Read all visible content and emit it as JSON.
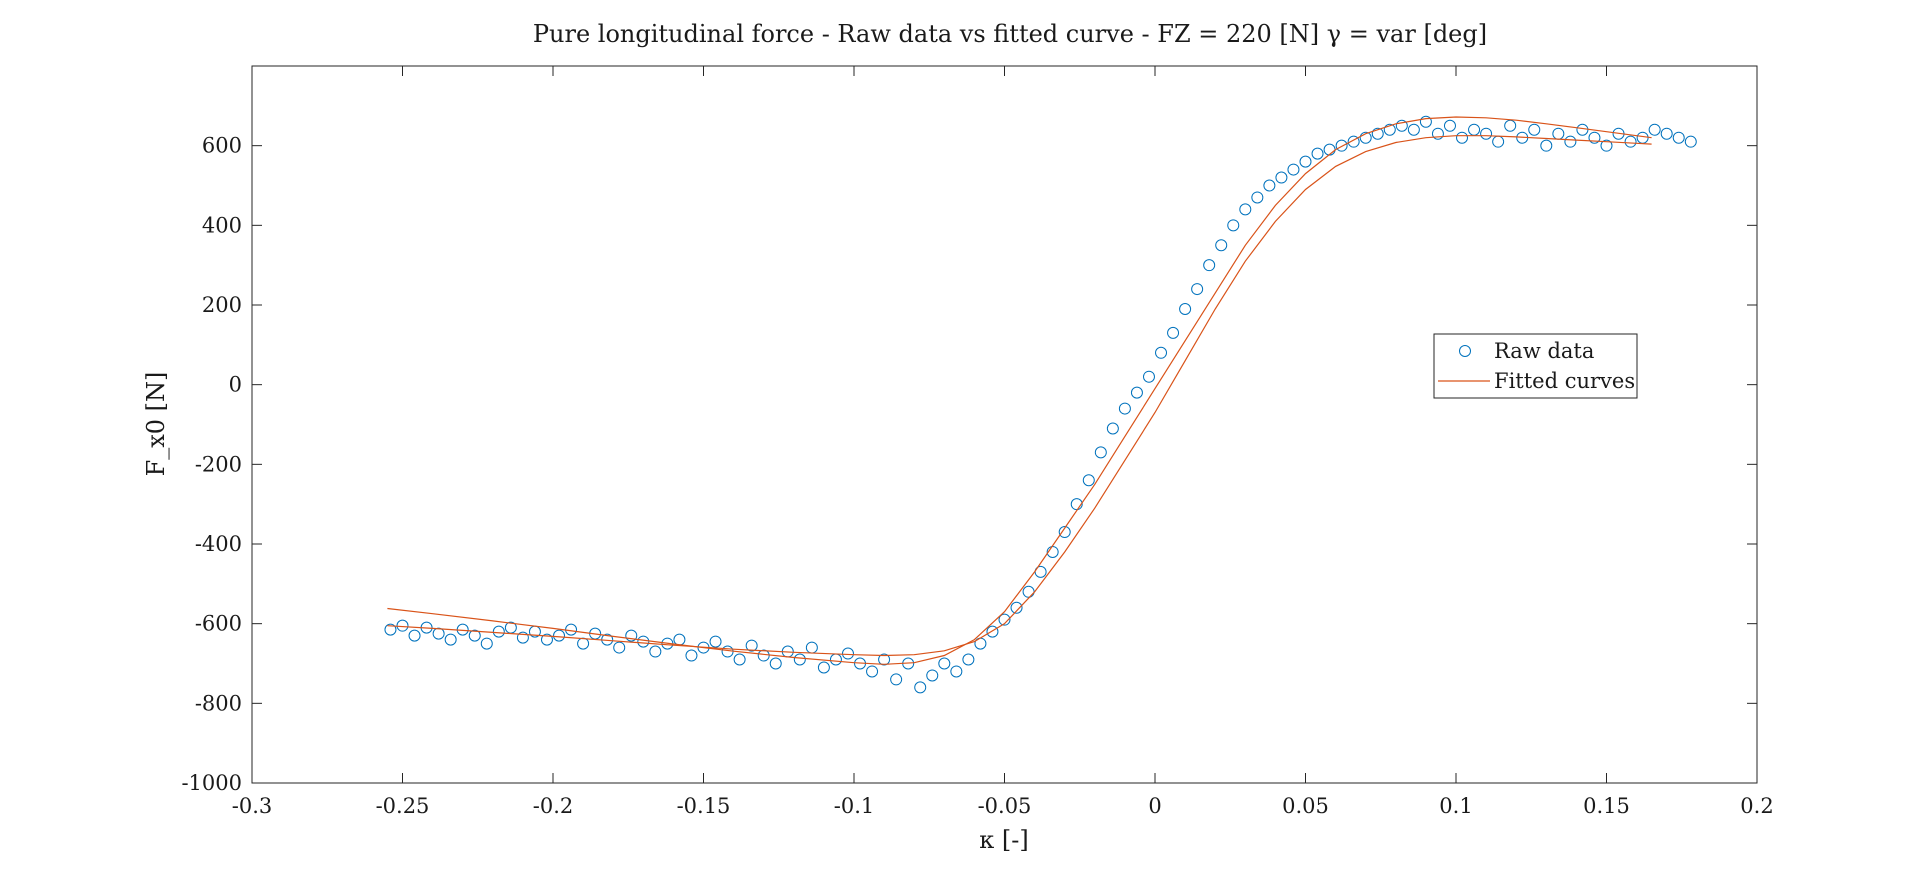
{
  "chart_data": {
    "type": "scatter",
    "title": "Pure longitudinal force - Raw data vs fitted curve - FZ = 220 [N] γ = var [deg]",
    "xlabel": "κ [-]",
    "ylabel": "F_x0 [N]",
    "xlim": [
      -0.3,
      0.2
    ],
    "ylim": [
      -1000,
      800
    ],
    "xticks": [
      -0.3,
      -0.25,
      -0.2,
      -0.15,
      -0.1,
      -0.05,
      0,
      0.05,
      0.1,
      0.15,
      0.2
    ],
    "xtick_labels": [
      "-0.3",
      "-0.25",
      "-0.2",
      "-0.15",
      "-0.1",
      "-0.05",
      "0",
      "0.05",
      "0.1",
      "0.15",
      "0.2"
    ],
    "yticks": [
      -1000,
      -800,
      -600,
      -400,
      -200,
      0,
      200,
      400,
      600
    ],
    "ytick_labels": [
      "-1000",
      "-800",
      "-600",
      "-400",
      "-200",
      "0",
      "200",
      "400",
      "600"
    ],
    "grid": false,
    "legend_position": "right-center",
    "series": [
      {
        "name": "Raw data",
        "marker": "circle",
        "color": "#0072BD",
        "x": [
          -0.254,
          -0.25,
          -0.246,
          -0.242,
          -0.238,
          -0.234,
          -0.23,
          -0.226,
          -0.222,
          -0.218,
          -0.214,
          -0.21,
          -0.206,
          -0.202,
          -0.198,
          -0.194,
          -0.19,
          -0.186,
          -0.182,
          -0.178,
          -0.174,
          -0.17,
          -0.166,
          -0.162,
          -0.158,
          -0.154,
          -0.15,
          -0.146,
          -0.142,
          -0.138,
          -0.134,
          -0.13,
          -0.126,
          -0.122,
          -0.118,
          -0.114,
          -0.11,
          -0.106,
          -0.102,
          -0.098,
          -0.094,
          -0.09,
          -0.086,
          -0.082,
          -0.078,
          -0.074,
          -0.07,
          -0.066,
          -0.062,
          -0.058,
          -0.054,
          -0.05,
          -0.046,
          -0.042,
          -0.038,
          -0.034,
          -0.03,
          -0.026,
          -0.022,
          -0.018,
          -0.014,
          -0.01,
          -0.006,
          -0.002,
          0.002,
          0.006,
          0.01,
          0.014,
          0.018,
          0.022,
          0.026,
          0.03,
          0.034,
          0.038,
          0.042,
          0.046,
          0.05,
          0.054,
          0.058,
          0.062,
          0.066,
          0.07,
          0.074,
          0.078,
          0.082,
          0.086,
          0.09,
          0.094,
          0.098,
          0.102,
          0.106,
          0.11,
          0.114,
          0.118,
          0.122,
          0.126,
          0.13,
          0.134,
          0.138,
          0.142,
          0.146,
          0.15,
          0.154,
          0.158,
          0.162,
          0.166,
          0.17,
          0.174,
          0.178
        ],
        "y": [
          -615,
          -605,
          -630,
          -610,
          -625,
          -640,
          -615,
          -630,
          -650,
          -620,
          -610,
          -635,
          -620,
          -640,
          -630,
          -615,
          -650,
          -625,
          -640,
          -660,
          -630,
          -645,
          -670,
          -650,
          -640,
          -680,
          -660,
          -645,
          -670,
          -690,
          -655,
          -680,
          -700,
          -670,
          -690,
          -660,
          -710,
          -690,
          -675,
          -700,
          -720,
          -690,
          -740,
          -700,
          -760,
          -730,
          -700,
          -720,
          -690,
          -650,
          -620,
          -590,
          -560,
          -520,
          -470,
          -420,
          -370,
          -300,
          -240,
          -170,
          -110,
          -60,
          -20,
          20,
          80,
          130,
          190,
          240,
          300,
          350,
          400,
          440,
          470,
          500,
          520,
          540,
          560,
          580,
          590,
          600,
          610,
          620,
          630,
          640,
          650,
          640,
          660,
          630,
          650,
          620,
          640,
          630,
          610,
          650,
          620,
          640,
          600,
          630,
          610,
          640,
          620,
          600,
          630,
          610,
          620,
          640,
          630,
          620,
          610
        ]
      },
      {
        "name": "Fitted curves",
        "color": "#D95319",
        "x": [
          -0.255,
          -0.24,
          -0.22,
          -0.2,
          -0.18,
          -0.16,
          -0.14,
          -0.12,
          -0.1,
          -0.09,
          -0.08,
          -0.07,
          -0.06,
          -0.05,
          -0.04,
          -0.03,
          -0.02,
          -0.01,
          0,
          0.01,
          0.02,
          0.03,
          0.04,
          0.05,
          0.06,
          0.07,
          0.08,
          0.09,
          0.1,
          0.11,
          0.12,
          0.13,
          0.14,
          0.15,
          0.16,
          0.165
        ],
        "y": [
          -562,
          -575,
          -593,
          -612,
          -632,
          -651,
          -669,
          -685,
          -698,
          -702,
          -698,
          -680,
          -640,
          -570,
          -470,
          -360,
          -250,
          -130,
          -10,
          110,
          230,
          350,
          450,
          530,
          590,
          630,
          655,
          668,
          672,
          670,
          664,
          655,
          645,
          635,
          625,
          620
        ]
      },
      {
        "name": "",
        "color": "#D95319",
        "x": [
          -0.255,
          -0.24,
          -0.22,
          -0.2,
          -0.18,
          -0.16,
          -0.14,
          -0.12,
          -0.1,
          -0.09,
          -0.08,
          -0.07,
          -0.06,
          -0.05,
          -0.04,
          -0.03,
          -0.02,
          -0.01,
          0,
          0.01,
          0.02,
          0.03,
          0.04,
          0.05,
          0.06,
          0.07,
          0.08,
          0.09,
          0.1,
          0.11,
          0.12,
          0.13,
          0.14,
          0.15,
          0.16,
          0.165
        ],
        "y": [
          -605,
          -612,
          -622,
          -632,
          -643,
          -654,
          -664,
          -672,
          -678,
          -680,
          -678,
          -668,
          -645,
          -600,
          -520,
          -420,
          -310,
          -190,
          -70,
          60,
          190,
          310,
          410,
          490,
          548,
          585,
          608,
          620,
          625,
          625,
          622,
          618,
          614,
          610,
          606,
          604
        ]
      }
    ]
  }
}
